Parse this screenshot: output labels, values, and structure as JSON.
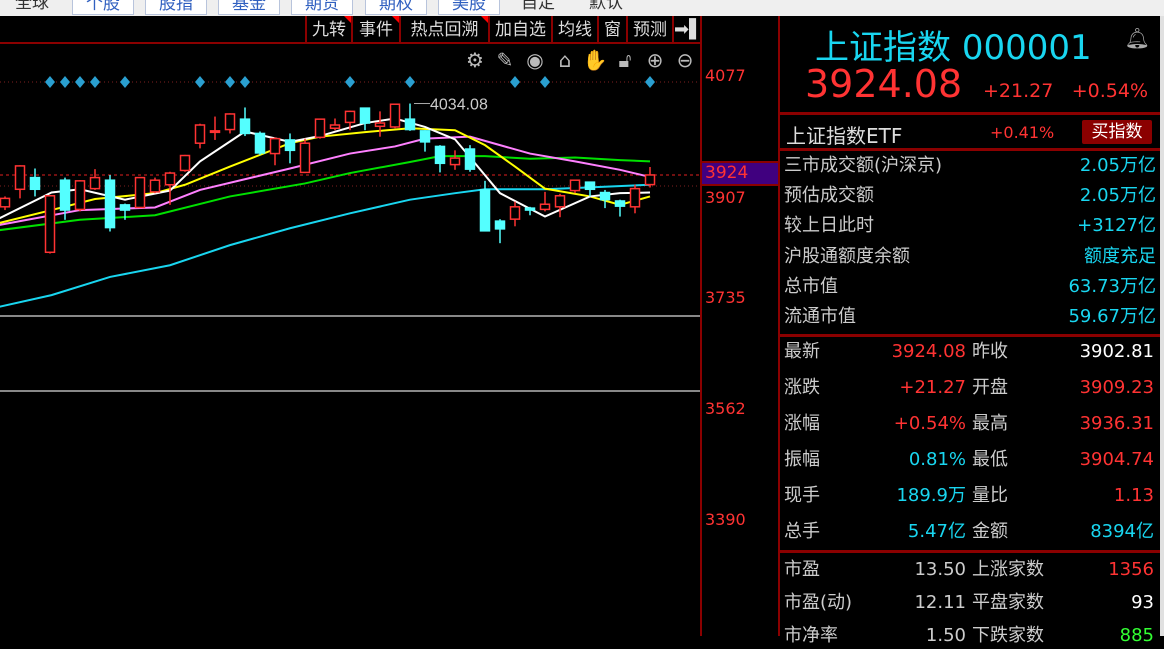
{
  "topnav": {
    "items": [
      "全球",
      "个股",
      "股指",
      "基金",
      "期货",
      "期权",
      "美股",
      "自定",
      "默认"
    ]
  },
  "toolbar": {
    "buttons": [
      "九转",
      "事件",
      "热点回溯",
      "加自选",
      "均线",
      "窗",
      "预测"
    ],
    "icons": [
      "settings-icon",
      "pen-icon",
      "eye-icon",
      "basket-icon",
      "hand-icon",
      "lock-icon",
      "zoom-in-icon",
      "zoom-out-icon"
    ]
  },
  "colors": {
    "up": "#ff3333",
    "down": "#54ffff",
    "ma5": "#ffffff",
    "ma10": "#ffff00",
    "ma20": "#ff80ff",
    "ma30": "#00e000",
    "ma60": "#19d6f0",
    "marker": "#2a9fd0"
  },
  "chart_data": {
    "type": "candlestick",
    "high_label": "4034.08",
    "yaxis_ticks": [
      "4077",
      "3907",
      "3735",
      "3562",
      "3390"
    ],
    "current_price_label": "3924",
    "ohlc": [
      [
        3875,
        3891,
        3870,
        3888
      ],
      [
        3902,
        3939,
        3888,
        3938
      ],
      [
        3920,
        3934,
        3891,
        3902
      ],
      [
        3805,
        3893,
        3803,
        3892
      ],
      [
        3916,
        3920,
        3855,
        3870
      ],
      [
        3871,
        3916,
        3868,
        3915
      ],
      [
        3903,
        3933,
        3901,
        3920
      ],
      [
        3916,
        3924,
        3837,
        3843
      ],
      [
        3878,
        3880,
        3855,
        3870
      ],
      [
        3874,
        3921,
        3873,
        3920
      ],
      [
        3898,
        3920,
        3896,
        3916
      ],
      [
        3909,
        3929,
        3878,
        3927
      ],
      [
        3931,
        3955,
        3929,
        3954
      ],
      [
        3973,
        4003,
        3965,
        4001
      ],
      [
        3990,
        4014,
        3978,
        3992
      ],
      [
        3994,
        4019,
        3988,
        4018
      ],
      [
        4010,
        4028,
        3984,
        3988
      ],
      [
        3988,
        3991,
        3955,
        3958
      ],
      [
        3957,
        3982,
        3939,
        3980
      ],
      [
        3978,
        3988,
        3942,
        3962
      ],
      [
        3928,
        3980,
        3927,
        3973
      ],
      [
        3982,
        4011,
        3980,
        4010
      ],
      [
        3996,
        4011,
        3993,
        4001
      ],
      [
        4005,
        4023,
        3993,
        4022
      ],
      [
        4027,
        4027,
        3993,
        4004
      ],
      [
        3999,
        4022,
        3983,
        4004
      ],
      [
        3998,
        4033,
        3996,
        4033
      ],
      [
        4010,
        4034.08,
        3992,
        3994
      ],
      [
        3992,
        3993,
        3960,
        3975
      ],
      [
        3968,
        3970,
        3928,
        3942
      ],
      [
        3940,
        3962,
        3932,
        3950
      ],
      [
        3964,
        3970,
        3929,
        3933
      ],
      [
        3901,
        3915,
        3837,
        3838
      ],
      [
        3853,
        3856,
        3819,
        3841
      ],
      [
        3856,
        3883,
        3845,
        3875
      ],
      [
        3873,
        3875,
        3862,
        3870
      ],
      [
        3871,
        3898,
        3868,
        3879
      ],
      [
        3875,
        3895,
        3859,
        3892
      ],
      [
        3900,
        3917,
        3896,
        3916
      ],
      [
        3913,
        3914,
        3891,
        3902
      ],
      [
        3897,
        3901,
        3873,
        3886
      ],
      [
        3884,
        3886,
        3860,
        3876
      ],
      [
        3875,
        3909,
        3865,
        3903
      ],
      [
        3909.23,
        3936.31,
        3904.74,
        3924.08
      ]
    ],
    "moving_averages": {
      "ma5": [
        [
          -0.4,
          3857
        ],
        [
          3.1,
          3897
        ],
        [
          5,
          3902
        ],
        [
          8,
          3886
        ],
        [
          11,
          3900
        ],
        [
          13,
          3945
        ],
        [
          16,
          3991
        ],
        [
          19,
          3975
        ],
        [
          21,
          3984
        ],
        [
          24,
          4004
        ],
        [
          26,
          4011
        ],
        [
          28,
          3998
        ],
        [
          30,
          3979
        ],
        [
          33,
          3896
        ],
        [
          36,
          3860
        ],
        [
          39,
          3891
        ],
        [
          41,
          3896
        ],
        [
          43,
          3897
        ]
      ],
      "ma10": [
        [
          -0.4,
          3850
        ],
        [
          3.1,
          3870
        ],
        [
          6,
          3887
        ],
        [
          10,
          3896
        ],
        [
          12,
          3909
        ],
        [
          15,
          3937
        ],
        [
          17,
          3955
        ],
        [
          19,
          3973
        ],
        [
          21,
          3983
        ],
        [
          24,
          3990
        ],
        [
          27,
          3996
        ],
        [
          30,
          3993
        ],
        [
          32,
          3970
        ],
        [
          34,
          3937
        ],
        [
          36,
          3903
        ],
        [
          39,
          3891
        ],
        [
          41,
          3878
        ],
        [
          43,
          3891
        ]
      ],
      "ma20": [
        [
          -0.4,
          3847
        ],
        [
          5,
          3870
        ],
        [
          10,
          3874
        ],
        [
          13,
          3901
        ],
        [
          19,
          3934
        ],
        [
          23,
          3957
        ],
        [
          26,
          3968
        ],
        [
          28,
          3980
        ],
        [
          31,
          3983
        ],
        [
          33,
          3970
        ],
        [
          35,
          3957
        ],
        [
          38,
          3945
        ],
        [
          41,
          3932
        ],
        [
          43,
          3921
        ]
      ],
      "ma30": [
        [
          -0.4,
          3839
        ],
        [
          5,
          3855
        ],
        [
          10,
          3862
        ],
        [
          15,
          3891
        ],
        [
          20,
          3911
        ],
        [
          23,
          3927
        ],
        [
          27,
          3944
        ],
        [
          29,
          3953
        ],
        [
          32,
          3953
        ],
        [
          35,
          3949
        ],
        [
          38,
          3951
        ],
        [
          41,
          3947
        ],
        [
          43,
          3945
        ]
      ],
      "ma60": [
        [
          -0.4,
          3721
        ],
        [
          3.1,
          3739
        ],
        [
          7,
          3767
        ],
        [
          11,
          3785
        ],
        [
          15,
          3816
        ],
        [
          19,
          3842
        ],
        [
          23,
          3865
        ],
        [
          27,
          3886
        ],
        [
          30,
          3896
        ],
        [
          32,
          3902
        ],
        [
          36,
          3902
        ],
        [
          39,
          3905
        ],
        [
          43,
          3909
        ]
      ]
    },
    "event_marker_candles": [
      3,
      4,
      5,
      6,
      8,
      13,
      15,
      16,
      23,
      27,
      34,
      36,
      43
    ],
    "reference_lines": [
      3924,
      3907
    ],
    "ylim": [
      3330,
      4140
    ]
  },
  "quote": {
    "name": "上证指数",
    "code": "000001",
    "price": "3924.08",
    "change": "+21.27",
    "pct": "+0.54%"
  },
  "etf": {
    "name": "上证指数ETF",
    "pct": "+0.41%",
    "button": "买指数"
  },
  "market": [
    {
      "label": "三市成交额(沪深京)",
      "value": "2.05万亿"
    },
    {
      "label": "预估成交额",
      "value": "2.05万亿"
    },
    {
      "label": "较上日此时",
      "value": "+3127亿"
    },
    {
      "label": "沪股通额度余额",
      "value": "额度充足"
    },
    {
      "label": "总市值",
      "value": "63.73万亿"
    },
    {
      "label": "流通市值",
      "value": "59.67万亿"
    }
  ],
  "stats": [
    {
      "l1": "最新",
      "v1": "3924.08",
      "c1": "red",
      "l2": "昨收",
      "v2": "3902.81",
      "c2": "wh"
    },
    {
      "l1": "涨跌",
      "v1": "+21.27",
      "c1": "red",
      "l2": "开盘",
      "v2": "3909.23",
      "c2": "red"
    },
    {
      "l1": "涨幅",
      "v1": "+0.54%",
      "c1": "red",
      "l2": "最高",
      "v2": "3936.31",
      "c2": "red"
    },
    {
      "l1": "振幅",
      "v1": "0.81%",
      "c1": "cy",
      "l2": "最低",
      "v2": "3904.74",
      "c2": "red"
    },
    {
      "l1": "现手",
      "v1": "189.9万",
      "c1": "cy",
      "l2": "量比",
      "v2": "1.13",
      "c2": "red"
    },
    {
      "l1": "总手",
      "v1": "5.47亿",
      "c1": "cy",
      "l2": "金额",
      "v2": "8394亿",
      "c2": "cy"
    }
  ],
  "stats2": [
    {
      "l1": "市盈",
      "v1": "13.50",
      "c1": "lg",
      "l2": "上涨家数",
      "v2": "1356",
      "c2": "red"
    },
    {
      "l1": "市盈(动)",
      "v1": "12.11",
      "c1": "lg",
      "l2": "平盘家数",
      "v2": "93",
      "c2": "wh"
    },
    {
      "l1": "市净率",
      "v1": "1.50",
      "c1": "lg",
      "l2": "下跌家数",
      "v2": "885",
      "c2": "gr"
    }
  ]
}
